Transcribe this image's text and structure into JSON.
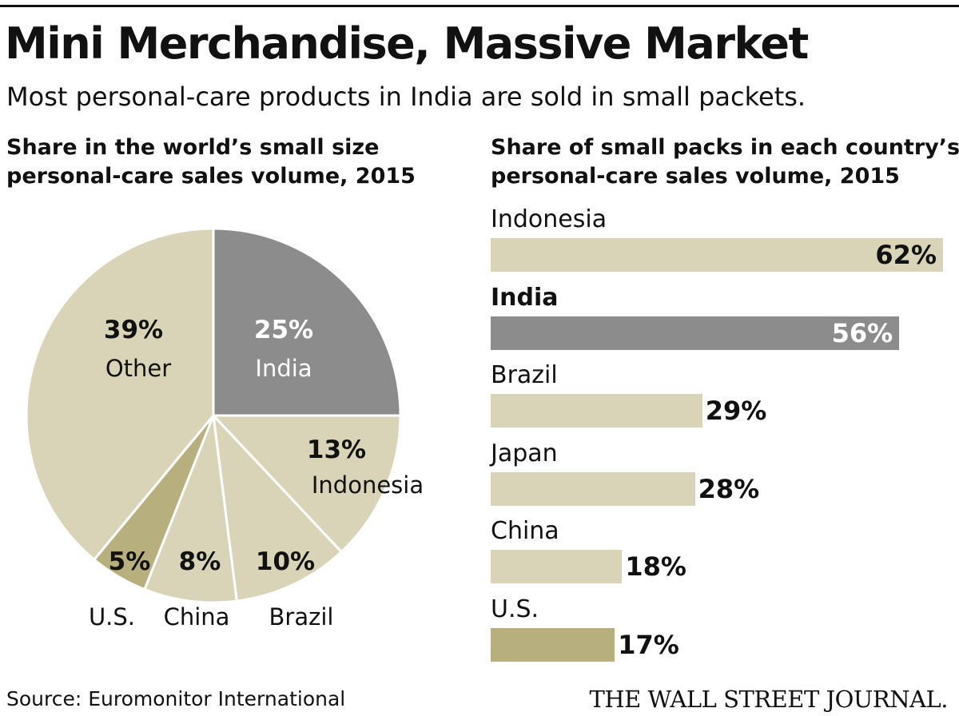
{
  "title": "Mini Merchandise, Massive Market",
  "subtitle": "Most personal-care products in India are sold in small packets.",
  "source": "Source: Euromonitor International",
  "logo": "THE WALL STREET JOURNAL.",
  "colors": {
    "highlight": "#8c8c8c",
    "base": "#d9d4b8",
    "accent": "#b8af7f",
    "text": "#111111"
  },
  "chart_data": [
    {
      "type": "pie",
      "title_lines": [
        "Share in the world’s small size",
        "personal-care sales volume, 2015"
      ],
      "unit": "%",
      "slices": [
        {
          "label": "India",
          "value": 25,
          "value_label": "25%",
          "color": "#8c8c8c"
        },
        {
          "label": "Indonesia",
          "value": 13,
          "value_label": "13%",
          "color": "#d9d4b8"
        },
        {
          "label": "Brazil",
          "value": 10,
          "value_label": "10%",
          "color": "#d9d4b8"
        },
        {
          "label": "China",
          "value": 8,
          "value_label": "8%",
          "color": "#d9d4b8"
        },
        {
          "label": "U.S.",
          "value": 5,
          "value_label": "5%",
          "color": "#b8af7f"
        },
        {
          "label": "Other",
          "value": 39,
          "value_label": "39%",
          "color": "#d9d4b8"
        }
      ]
    },
    {
      "type": "bar",
      "orientation": "horizontal",
      "title_lines": [
        "Share of small packs in each country’s",
        "personal-care sales volume, 2015"
      ],
      "unit": "%",
      "xlim": [
        0,
        62
      ],
      "categories": [
        "Indonesia",
        "India",
        "Brazil",
        "Japan",
        "China",
        "U.S."
      ],
      "values": [
        62,
        56,
        29,
        28,
        18,
        17
      ],
      "value_labels": [
        "62%",
        "56%",
        "29%",
        "28%",
        "18%",
        "17%"
      ],
      "highlight": "India",
      "colors": [
        "#d9d4b8",
        "#8c8c8c",
        "#d9d4b8",
        "#d9d4b8",
        "#d9d4b8",
        "#b8af7f"
      ]
    }
  ]
}
